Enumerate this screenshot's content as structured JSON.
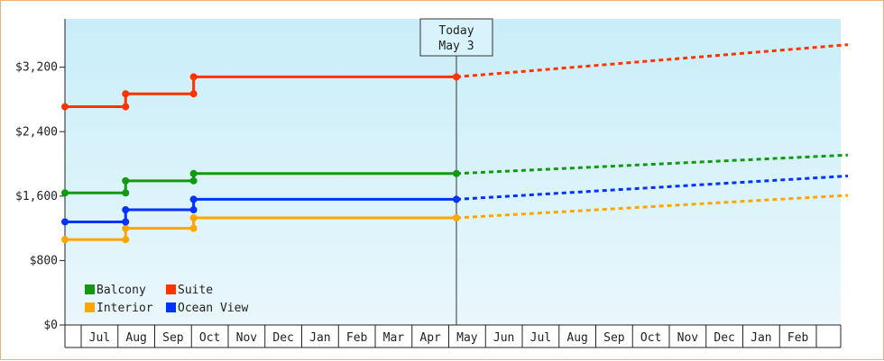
{
  "chart_data": {
    "type": "line",
    "step": true,
    "x_ticks": [
      "Jul",
      "Aug",
      "Sep",
      "Oct",
      "Nov",
      "Dec",
      "Jan",
      "Feb",
      "Mar",
      "Apr",
      "May",
      "Jun",
      "Jul",
      "Aug",
      "Sep",
      "Oct",
      "Nov",
      "Dec",
      "Jan",
      "Feb"
    ],
    "y_ticks": [
      "$0",
      "$800",
      "$1,600",
      "$2,400",
      "$3,200"
    ],
    "ylim": [
      0,
      3800
    ],
    "x_range": [
      0,
      21.3
    ],
    "today": {
      "label_line1": "Today",
      "label_line2": "May 3",
      "x": 10.65
    },
    "legend_position": "bottom-left",
    "background": {
      "top": "#c9eef9",
      "bottom": "#eaf7fc"
    },
    "series": [
      {
        "name": "Balcony",
        "color": "#119911",
        "history": [
          [
            0,
            1640
          ],
          [
            1.65,
            1640
          ],
          [
            1.65,
            1790
          ],
          [
            3.5,
            1790
          ],
          [
            3.5,
            1880
          ],
          [
            10.65,
            1880
          ]
        ],
        "forecast": [
          [
            10.65,
            1880
          ],
          [
            21.3,
            2110
          ]
        ]
      },
      {
        "name": "Interior",
        "color": "#ffa500",
        "history": [
          [
            0,
            1060
          ],
          [
            1.65,
            1060
          ],
          [
            1.65,
            1200
          ],
          [
            3.5,
            1200
          ],
          [
            3.5,
            1330
          ],
          [
            10.65,
            1330
          ]
        ],
        "forecast": [
          [
            10.65,
            1330
          ],
          [
            21.3,
            1610
          ]
        ]
      },
      {
        "name": "Suite",
        "color": "#ff3300",
        "history": [
          [
            0,
            2710
          ],
          [
            1.65,
            2710
          ],
          [
            1.65,
            2870
          ],
          [
            3.5,
            2870
          ],
          [
            3.5,
            3080
          ],
          [
            10.65,
            3080
          ]
        ],
        "forecast": [
          [
            10.65,
            3080
          ],
          [
            21.3,
            3480
          ]
        ]
      },
      {
        "name": "Ocean View",
        "color": "#0033ff",
        "history": [
          [
            0,
            1280
          ],
          [
            1.65,
            1280
          ],
          [
            1.65,
            1430
          ],
          [
            3.5,
            1430
          ],
          [
            3.5,
            1560
          ],
          [
            10.65,
            1560
          ]
        ],
        "forecast": [
          [
            10.65,
            1560
          ],
          [
            21.3,
            1850
          ]
        ]
      }
    ]
  }
}
